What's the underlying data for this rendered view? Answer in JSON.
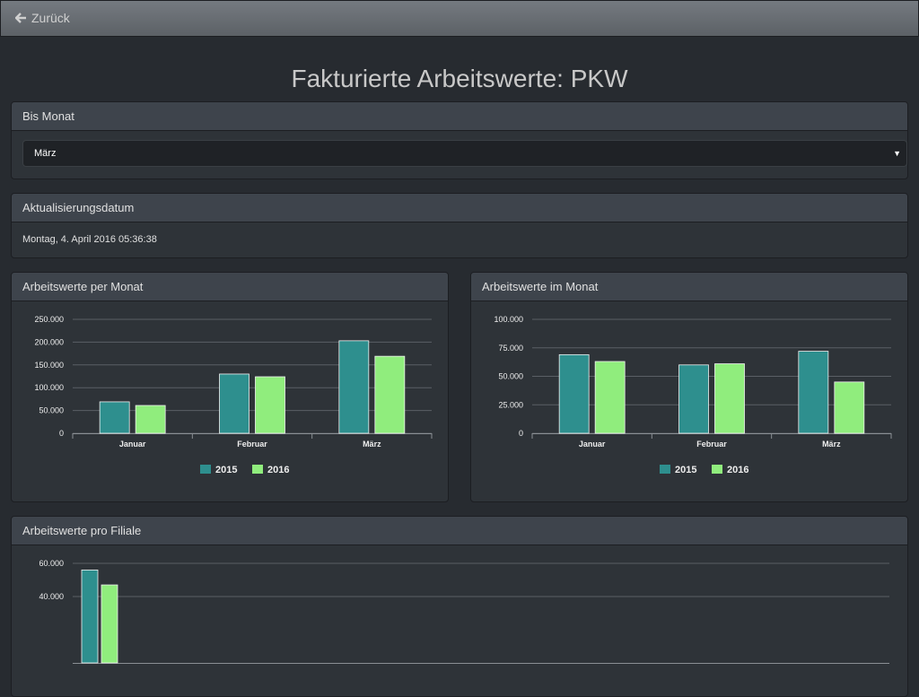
{
  "nav": {
    "back": "Zurück"
  },
  "title": "Fakturierte Arbeitswerte: PKW",
  "panels": {
    "month": {
      "heading": "Bis Monat",
      "selected": "März"
    },
    "update": {
      "heading": "Aktualisierungsdatum",
      "text": "Montag, 4. April 2016 05:36:38"
    }
  },
  "chart_data": [
    {
      "type": "bar",
      "title": "Arbeitswerte per Monat",
      "categories": [
        "Januar",
        "Februar",
        "März"
      ],
      "series": [
        {
          "name": "2015",
          "color": "#2e8f8e",
          "values": [
            69000,
            130000,
            203000
          ]
        },
        {
          "name": "2016",
          "color": "#90ed7d",
          "values": [
            61000,
            124000,
            169000
          ]
        }
      ],
      "ylim": [
        0,
        250000
      ],
      "yticks": [
        0,
        {
          "value": 50000,
          "label": "50.000"
        },
        {
          "value": 100000,
          "label": "100.000"
        },
        {
          "value": 150000,
          "label": "150.000"
        },
        {
          "value": 200000,
          "label": "200.000"
        },
        {
          "value": 250000,
          "label": "250.000"
        }
      ],
      "grid": true,
      "legend": "bottom"
    },
    {
      "type": "bar",
      "title": "Arbeitswerte im Monat",
      "categories": [
        "Januar",
        "Februar",
        "März"
      ],
      "series": [
        {
          "name": "2015",
          "color": "#2e8f8e",
          "values": [
            69000,
            60000,
            72000
          ]
        },
        {
          "name": "2016",
          "color": "#90ed7d",
          "values": [
            63000,
            61000,
            45000
          ]
        }
      ],
      "ylim": [
        0,
        100000
      ],
      "yticks": [
        0,
        {
          "value": 25000,
          "label": "25.000"
        },
        {
          "value": 50000,
          "label": "50.000"
        },
        {
          "value": 75000,
          "label": "75.000"
        },
        {
          "value": 100000,
          "label": "100.000"
        }
      ],
      "grid": true,
      "legend": "bottom"
    },
    {
      "type": "bar",
      "title": "Arbeitswerte pro Filiale",
      "categories": [
        null
      ],
      "series": [
        {
          "color": "#2e8f8e",
          "values": [
            56000
          ]
        },
        {
          "color": "#90ed7d",
          "values": [
            47000
          ]
        }
      ],
      "ylim": [
        0,
        60000
      ],
      "yticks": [
        {
          "value": 40000,
          "label": "40.000"
        },
        {
          "value": 60000,
          "label": "60.000"
        }
      ],
      "grid": true
    }
  ]
}
